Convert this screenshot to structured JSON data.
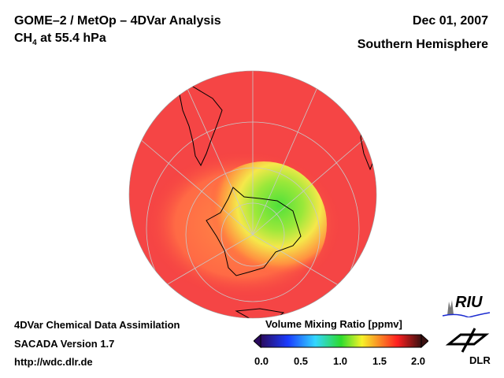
{
  "header": {
    "title": "GOME–2 / MetOp – 4DVar Analysis",
    "species": "CH",
    "species_sub": "4",
    "level": " at 55.4 hPa",
    "date": "Dec 01, 2007",
    "region": "Southern Hemisphere"
  },
  "footer": {
    "line1": "4DVar Chemical Data Assimilation",
    "line2": "SACADA Version 1.7",
    "line3": "http://wdc.dlr.de"
  },
  "colorbar": {
    "title": "Volume Mixing Ratio [ppmv]",
    "ticks": [
      "0.0",
      "0.5",
      "1.0",
      "1.5",
      "2.0"
    ],
    "min": 0.0,
    "max": 2.0,
    "colors": [
      "#2a0a5e",
      "#1a3cff",
      "#33d6ff",
      "#2ddc2d",
      "#f6f22a",
      "#ff2020",
      "#3a1010"
    ]
  },
  "logos": {
    "riu": "RIU",
    "dlr": "DLR"
  }
}
